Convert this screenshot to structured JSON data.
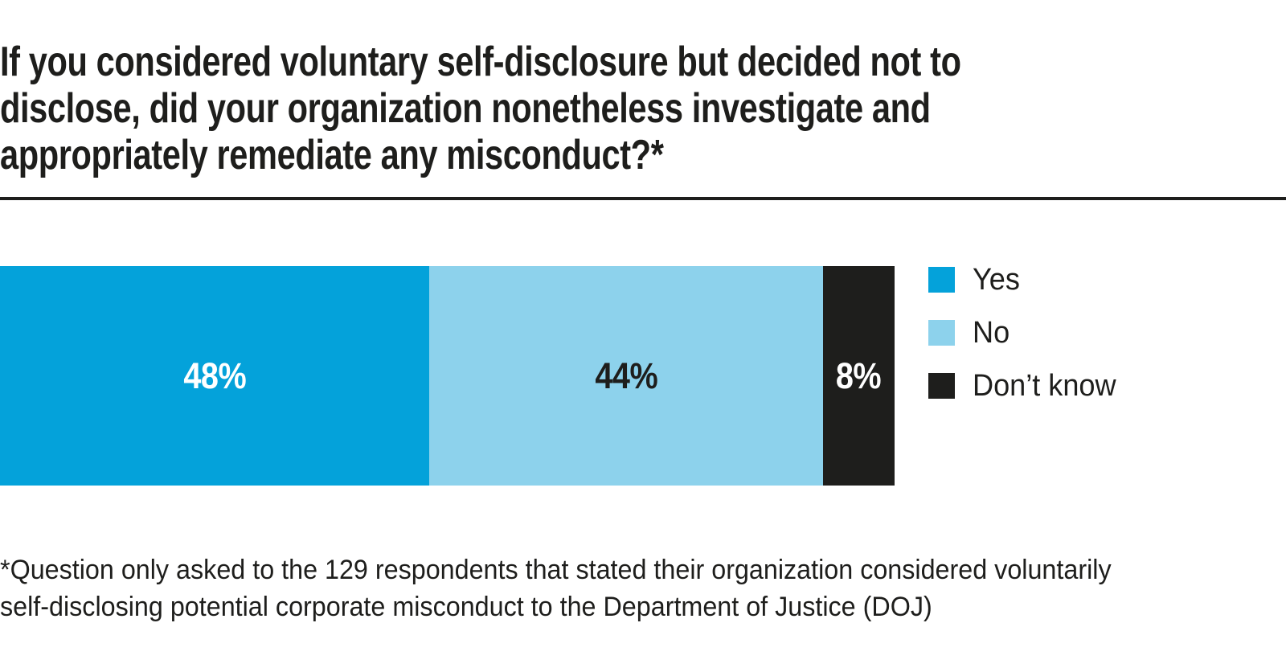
{
  "title": {
    "lines": [
      "If you considered voluntary self-disclosure but decided not to",
      "disclose, did your organization nonetheless investigate and",
      "appropriately remediate any misconduct?*"
    ]
  },
  "footnote": {
    "lines": [
      "*Question only asked to the 129 respondents that stated their organization considered voluntarily",
      "self-disclosing potential corporate misconduct to the Department of Justice (DOJ)"
    ]
  },
  "colors": {
    "ink": "#1E1E1C",
    "yes_blue": "#04A2DA",
    "no_light_blue": "#8DD2EC",
    "dont_know_black": "#1E1E1C",
    "background": "#FFFFFF"
  },
  "chart_data": {
    "type": "bar",
    "subtype": "horizontal-stacked-100pct",
    "title": "If you considered voluntary self-disclosure but decided not to disclose, did your organization nonetheless investigate and appropriately remediate any misconduct?*",
    "categories": [
      "Yes",
      "No",
      "Don’t know"
    ],
    "values": [
      48,
      44,
      8
    ],
    "unit": "%",
    "total": 100,
    "labels": [
      "48%",
      "44%",
      "8%"
    ],
    "segment_colors": [
      "#04A2DA",
      "#8DD2EC",
      "#1E1E1C"
    ],
    "label_colors": [
      "#FFFFFF",
      "#1E1E1C",
      "#FFFFFF"
    ],
    "legend_position": "right",
    "grid": false,
    "legend": [
      {
        "label": "Yes",
        "color": "#04A2DA"
      },
      {
        "label": "No",
        "color": "#8DD2EC"
      },
      {
        "label": "Don’t know",
        "color": "#1E1E1C"
      }
    ]
  }
}
